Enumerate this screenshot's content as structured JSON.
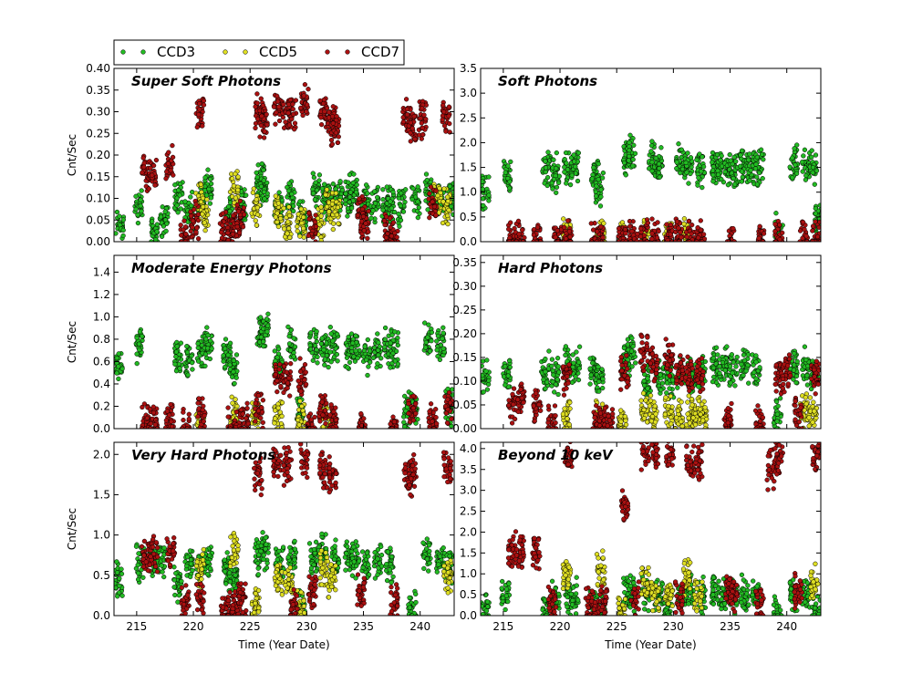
{
  "chart_data": [
    {
      "type": "scatter",
      "title": "Super Soft Photons",
      "xlabel": "",
      "ylabel": "Cnt/Sec",
      "xlim": [
        213,
        243
      ],
      "ylim": [
        0,
        0.4
      ],
      "xticks": [],
      "yticks": [
        "0.00",
        "0.05",
        "0.10",
        "0.15",
        "0.20",
        "0.25",
        "0.30",
        "0.35",
        "0.40"
      ],
      "series": [
        {
          "name": "CCD3",
          "color": "#22bb22",
          "x": [
            213.5,
            215.2,
            216.5,
            217.4,
            218.7,
            219.6,
            220.7,
            221.3,
            223.1,
            224.4,
            225.9,
            226.2,
            227.5,
            228.6,
            229.6,
            230.8,
            231.7,
            232.1,
            232.8,
            233.7,
            234.1,
            235.2,
            236.0,
            237.0,
            237.4,
            238.4,
            239.6,
            240.8,
            241.7,
            242.7
          ],
          "y": [
            0.04,
            0.08,
            0.02,
            0.05,
            0.11,
            0.07,
            0.1,
            0.12,
            0.07,
            0.09,
            0.14,
            0.12,
            0.08,
            0.1,
            0.06,
            0.12,
            0.1,
            0.09,
            0.11,
            0.1,
            0.12,
            0.09,
            0.09,
            0.08,
            0.09,
            0.08,
            0.1,
            0.11,
            0.09,
            0.1
          ]
        },
        {
          "name": "CCD5",
          "color": "#dddd22",
          "x": [
            220.5,
            221.0,
            223.6,
            225.5,
            227.5,
            228.3,
            229.5,
            231.2,
            232.0,
            232.6,
            241.5,
            242.3
          ],
          "y": [
            0.09,
            0.06,
            0.12,
            0.08,
            0.07,
            0.04,
            0.05,
            0.04,
            0.08,
            0.07,
            0.1,
            0.08
          ]
        },
        {
          "name": "CCD7",
          "color": "#aa1111",
          "x": [
            215.8,
            216.4,
            217.9,
            219.2,
            220.1,
            220.6,
            222.7,
            223.3,
            223.8,
            224.2,
            225.8,
            226.2,
            227.4,
            228.2,
            228.7,
            229.8,
            230.5,
            231.5,
            232.2,
            232.5,
            234.8,
            235.1,
            237.2,
            237.7,
            238.8,
            239.3,
            240.2,
            241.1,
            242.3
          ],
          "y": [
            0.16,
            0.15,
            0.18,
            0.01,
            0.05,
            0.3,
            0.03,
            0.02,
            0.04,
            0.06,
            0.3,
            0.28,
            0.31,
            0.3,
            0.29,
            0.32,
            0.03,
            0.3,
            0.28,
            0.26,
            0.07,
            0.04,
            0.02,
            0.01,
            0.29,
            0.27,
            0.28,
            0.08,
            0.29
          ]
        }
      ],
      "legend": "top-left, above plot"
    },
    {
      "type": "scatter",
      "title": "Soft Photons",
      "xlabel": "",
      "ylabel": "",
      "xlim": [
        213,
        243
      ],
      "ylim": [
        0,
        3.5
      ],
      "xticks": [],
      "yticks": [
        "0.0",
        "0.5",
        "1.0",
        "1.5",
        "2.0",
        "2.5",
        "3.0",
        "3.5"
      ],
      "series": [
        {
          "name": "CCD3",
          "color": "#22bb22",
          "x": [
            213.4,
            215.3,
            218.8,
            219.6,
            220.7,
            221.3,
            223.1,
            223.5,
            225.9,
            226.3,
            228.2,
            228.7,
            230.6,
            231.3,
            232.4,
            233.7,
            234.2,
            234.8,
            235.4,
            236.2,
            236.8,
            237.6,
            239.3,
            240.6,
            241.7,
            242.3,
            242.8
          ],
          "y": [
            1.0,
            1.4,
            1.45,
            1.4,
            1.45,
            1.5,
            1.4,
            1.1,
            1.7,
            1.8,
            1.7,
            1.5,
            1.6,
            1.5,
            1.5,
            1.45,
            1.5,
            1.4,
            1.4,
            1.5,
            1.45,
            1.5,
            0.2,
            1.6,
            1.5,
            1.5,
            0.4
          ]
        },
        {
          "name": "CCD5",
          "color": "#dddd22",
          "x": [
            220.6,
            223.6,
            225.5,
            227.5,
            229.5,
            231.2
          ],
          "y": [
            0.05,
            0.1,
            0.08,
            0.1,
            0.05,
            0.1
          ]
        },
        {
          "name": "CCD7",
          "color": "#aa1111",
          "x": [
            215.8,
            216.5,
            218.0,
            219.8,
            220.7,
            223.1,
            223.5,
            225.5,
            226.5,
            227.4,
            228.4,
            229.6,
            230.5,
            231.5,
            232.4,
            235.1,
            237.8,
            239.3,
            241.5,
            242.6
          ],
          "y": [
            0.03,
            0.03,
            0.03,
            0.05,
            0.08,
            0.02,
            0.02,
            0.1,
            0.08,
            0.1,
            0.12,
            0.1,
            0.1,
            0.08,
            0.1,
            0.02,
            0.02,
            0.1,
            0.03,
            0.05
          ]
        }
      ]
    },
    {
      "type": "scatter",
      "title": "Moderate Energy Photons",
      "xlabel": "",
      "ylabel": "Cnt/Sec",
      "xlim": [
        213,
        243
      ],
      "ylim": [
        0,
        1.55
      ],
      "xticks": [],
      "yticks": [
        "0.0",
        "0.2",
        "0.4",
        "0.6",
        "0.8",
        "1.0",
        "1.2",
        "1.4"
      ],
      "series": [
        {
          "name": "CCD3",
          "color": "#22bb22",
          "x": [
            213.4,
            215.2,
            218.7,
            219.6,
            220.7,
            221.3,
            223.0,
            223.5,
            225.9,
            226.3,
            227.5,
            228.7,
            229.4,
            230.6,
            231.6,
            232.4,
            233.7,
            234.3,
            235.3,
            236.2,
            237.2,
            237.7,
            238.9,
            239.5,
            240.7,
            241.8,
            242.6
          ],
          "y": [
            0.55,
            0.75,
            0.65,
            0.6,
            0.7,
            0.75,
            0.65,
            0.55,
            0.85,
            0.9,
            0.6,
            0.75,
            0.15,
            0.75,
            0.7,
            0.75,
            0.7,
            0.75,
            0.65,
            0.7,
            0.75,
            0.7,
            0.15,
            0.15,
            0.8,
            0.75,
            0.2
          ]
        },
        {
          "name": "CCD5",
          "color": "#dddd22",
          "x": [
            220.6,
            223.6,
            225.5,
            227.5,
            229.5,
            231.5,
            232.2
          ],
          "y": [
            0.05,
            0.12,
            0.1,
            0.1,
            0.08,
            0.1,
            0.05
          ]
        },
        {
          "name": "CCD7",
          "color": "#aa1111",
          "x": [
            215.8,
            216.5,
            217.9,
            219.3,
            220.7,
            223.4,
            224.0,
            224.5,
            225.8,
            227.5,
            228.3,
            229.6,
            230.4,
            231.4,
            232.3,
            234.9,
            237.7,
            239.3,
            241.1,
            242.5
          ],
          "y": [
            0.06,
            0.07,
            0.08,
            0.02,
            0.15,
            0.02,
            0.03,
            0.05,
            0.15,
            0.45,
            0.45,
            0.45,
            0.03,
            0.15,
            0.1,
            0.02,
            0.01,
            0.15,
            0.06,
            0.2
          ]
        }
      ]
    },
    {
      "type": "scatter",
      "title": "Hard Photons",
      "xlabel": "",
      "ylabel": "",
      "xlim": [
        213,
        243
      ],
      "ylim": [
        0,
        0.365
      ],
      "xticks": [],
      "yticks": [
        "0.00",
        "0.05",
        "0.10",
        "0.15",
        "0.20",
        "0.25",
        "0.30",
        "0.35"
      ],
      "series": [
        {
          "name": "CCD3",
          "color": "#22bb22",
          "x": [
            213.4,
            215.3,
            218.7,
            219.6,
            220.7,
            221.4,
            223.0,
            223.5,
            225.8,
            226.3,
            227.7,
            228.8,
            229.7,
            230.7,
            231.6,
            232.5,
            233.7,
            234.4,
            235.3,
            236.3,
            237.3,
            239.2,
            240.6,
            241.7,
            242.5
          ],
          "y": [
            0.11,
            0.12,
            0.12,
            0.11,
            0.14,
            0.13,
            0.12,
            0.1,
            0.15,
            0.16,
            0.1,
            0.11,
            0.1,
            0.12,
            0.11,
            0.12,
            0.13,
            0.14,
            0.12,
            0.13,
            0.12,
            0.03,
            0.13,
            0.13,
            0.12
          ]
        },
        {
          "name": "CCD5",
          "color": "#dddd22",
          "x": [
            220.6,
            223.5,
            225.5,
            227.5,
            228.2,
            229.6,
            230.5,
            231.5,
            232.0,
            232.6,
            241.5,
            242.3
          ],
          "y": [
            0.03,
            0.02,
            0.02,
            0.04,
            0.03,
            0.03,
            0.03,
            0.03,
            0.03,
            0.03,
            0.03,
            0.03
          ]
        },
        {
          "name": "CCD7",
          "color": "#aa1111",
          "x": [
            215.8,
            216.5,
            218.0,
            219.3,
            220.6,
            223.2,
            223.8,
            224.3,
            225.7,
            227.4,
            228.3,
            229.6,
            230.5,
            231.4,
            232.3,
            234.8,
            237.6,
            239.3,
            240.0,
            241.0,
            242.5
          ],
          "y": [
            0.05,
            0.06,
            0.05,
            0.01,
            0.11,
            0.01,
            0.01,
            0.01,
            0.12,
            0.16,
            0.14,
            0.15,
            0.12,
            0.11,
            0.11,
            0.02,
            0.01,
            0.11,
            0.12,
            0.03,
            0.11
          ]
        }
      ]
    },
    {
      "type": "scatter",
      "title": "Very Hard Photons",
      "xlabel": "Time (Year Date)",
      "ylabel": "Cnt/Sec",
      "xlim": [
        213,
        243
      ],
      "ylim": [
        0,
        2.15
      ],
      "xticks": [
        "215",
        "220",
        "225",
        "230",
        "235",
        "240"
      ],
      "yticks": [
        "0.0",
        "0.5",
        "1.0",
        "1.5",
        "2.0"
      ],
      "series": [
        {
          "name": "CCD3",
          "color": "#22bb22",
          "x": [
            213.4,
            215.3,
            216.5,
            217.2,
            218.6,
            219.6,
            220.6,
            221.3,
            223.0,
            223.5,
            225.8,
            226.3,
            227.6,
            228.7,
            229.5,
            230.6,
            231.4,
            232.5,
            233.7,
            234.3,
            235.2,
            236.3,
            237.3,
            239.3,
            240.6,
            241.8,
            242.5
          ],
          "y": [
            0.45,
            0.65,
            0.7,
            0.7,
            0.4,
            0.65,
            0.65,
            0.7,
            0.6,
            0.5,
            0.75,
            0.8,
            0.65,
            0.7,
            0.1,
            0.75,
            0.8,
            0.7,
            0.7,
            0.7,
            0.65,
            0.7,
            0.65,
            0.1,
            0.75,
            0.7,
            0.6
          ]
        },
        {
          "name": "CCD5",
          "color": "#dddd22",
          "x": [
            220.6,
            223.6,
            225.5,
            227.5,
            228.4,
            229.5,
            231.5,
            232.2,
            242.4
          ],
          "y": [
            0.6,
            0.8,
            0.15,
            0.5,
            0.4,
            0.1,
            0.6,
            0.45,
            0.5
          ]
        },
        {
          "name": "CCD7",
          "color": "#aa1111",
          "x": [
            215.8,
            216.5,
            218.0,
            219.3,
            220.6,
            222.8,
            223.4,
            223.8,
            224.3,
            225.7,
            227.4,
            228.3,
            228.9,
            229.8,
            230.5,
            231.5,
            232.3,
            234.8,
            237.7,
            238.9,
            239.3,
            242.4
          ],
          "y": [
            0.75,
            0.75,
            0.78,
            0.15,
            0.2,
            0.08,
            0.05,
            0.15,
            0.18,
            1.75,
            1.9,
            1.85,
            0.1,
            1.9,
            0.3,
            1.8,
            1.75,
            0.3,
            0.15,
            1.7,
            1.8,
            1.85
          ]
        }
      ]
    },
    {
      "type": "scatter",
      "title": "Beyond 10 keV",
      "xlabel": "Time (Year Date)",
      "ylabel": "",
      "xlim": [
        213,
        243
      ],
      "ylim": [
        0,
        4.15
      ],
      "xticks": [
        "215",
        "220",
        "225",
        "230",
        "235",
        "240"
      ],
      "yticks": [
        "0.0",
        "0.5",
        "1.0",
        "1.5",
        "2.0",
        "2.5",
        "3.0",
        "3.5",
        "4.0"
      ],
      "series": [
        {
          "name": "CCD3",
          "color": "#22bb22",
          "x": [
            213.4,
            215.2,
            218.8,
            219.6,
            220.8,
            221.3,
            223.0,
            223.6,
            225.9,
            226.4,
            227.6,
            228.7,
            229.5,
            230.7,
            231.4,
            232.5,
            233.7,
            234.5,
            235.3,
            236.3,
            237.3,
            239.2,
            240.6,
            241.7,
            242.6
          ],
          "y": [
            0.2,
            0.45,
            0.02,
            0.4,
            0.45,
            0.45,
            0.2,
            0.1,
            0.5,
            0.55,
            0.6,
            0.5,
            0.05,
            0.5,
            0.55,
            0.5,
            0.5,
            0.55,
            0.5,
            0.5,
            0.45,
            0.02,
            0.5,
            0.5,
            0.1
          ]
        },
        {
          "name": "CCD5",
          "color": "#dddd22",
          "x": [
            220.6,
            223.6,
            225.5,
            227.5,
            228.4,
            229.6,
            231.2,
            232.2,
            242.4
          ],
          "y": [
            0.95,
            1.1,
            0.2,
            0.75,
            0.5,
            0.5,
            0.9,
            0.5,
            0.85
          ]
        },
        {
          "name": "CCD7",
          "color": "#aa1111",
          "x": [
            215.8,
            216.5,
            217.9,
            219.3,
            220.7,
            222.6,
            223.3,
            223.8,
            225.7,
            226.6,
            227.5,
            228.3,
            229.7,
            230.5,
            231.5,
            232.2,
            234.9,
            235.3,
            237.6,
            238.6,
            239.3,
            241.0,
            242.6
          ],
          "y": [
            1.55,
            1.55,
            1.6,
            0.3,
            3.85,
            0.2,
            0.15,
            0.35,
            2.6,
            0.35,
            3.95,
            3.9,
            3.85,
            0.4,
            3.7,
            3.65,
            0.6,
            0.5,
            0.3,
            3.5,
            3.8,
            0.6,
            3.9
          ]
        }
      ]
    }
  ],
  "legend": {
    "items": [
      {
        "label": "CCD3",
        "color": "#22bb22"
      },
      {
        "label": "CCD5",
        "color": "#dddd22"
      },
      {
        "label": "CCD7",
        "color": "#aa1111"
      }
    ]
  }
}
